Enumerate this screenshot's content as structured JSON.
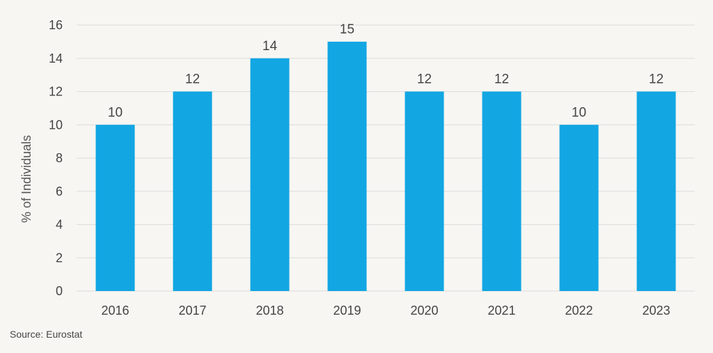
{
  "chart_data": {
    "type": "bar",
    "categories": [
      "2016",
      "2017",
      "2018",
      "2019",
      "2020",
      "2021",
      "2022",
      "2023"
    ],
    "values": [
      10,
      12,
      14,
      15,
      12,
      12,
      10,
      12
    ],
    "title": "",
    "xlabel": "",
    "ylabel": "% of Individuals",
    "ylim": [
      0,
      16
    ],
    "yticks": [
      0,
      2,
      4,
      6,
      8,
      10,
      12,
      14,
      16
    ],
    "grid": true,
    "legend": "none",
    "data_labels": true,
    "bar_color": "#12a6e3",
    "grid_color": "#dcdcdc"
  },
  "footer": {
    "source": "Source: Eurostat"
  }
}
